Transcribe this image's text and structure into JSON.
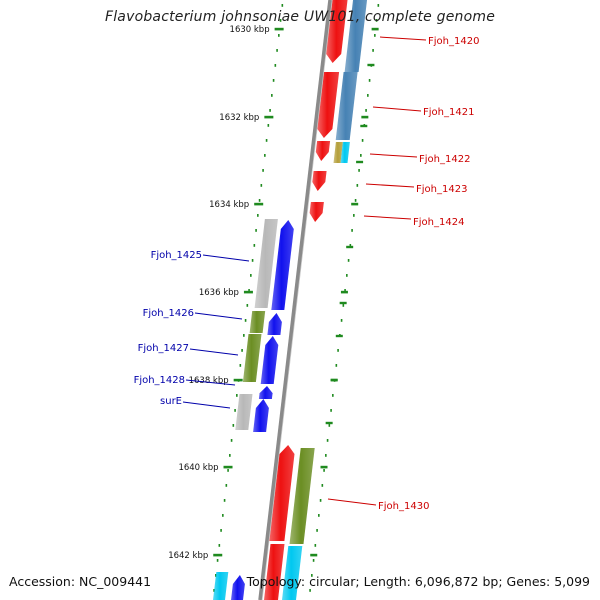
{
  "title": "Flavobacterium johnsoniae UW101, complete genome",
  "accession": "Accession: NC_009441",
  "summary": "Topology: circular; Length: 6,096,872 bp; Genes: 5,099",
  "colors": {
    "red_gene": "#ee1111",
    "blue_gene": "#1111ee",
    "olive_gene": "#6b8e23",
    "steelblue_gene": "#4682b4",
    "gray_gene": "#b8b8b8",
    "cyan_gene": "#00c8f0",
    "tan_gene": "#b59f3b",
    "backbone": "#8a8a8a",
    "tick": "#1f8a1f",
    "label_red": "#cc0000",
    "label_blue": "#0000aa"
  },
  "scale": {
    "ticks": [
      {
        "label": "1630 kbp"
      },
      {
        "label": "1632 kbp"
      },
      {
        "label": "1634 kbp"
      },
      {
        "label": "1636 kbp"
      },
      {
        "label": "1638 kbp"
      },
      {
        "label": "1640 kbp"
      },
      {
        "label": "1642 kbp"
      }
    ]
  },
  "genes": {
    "forward": [
      {
        "name": "Fjoh_1420"
      },
      {
        "name": "Fjoh_1421"
      },
      {
        "name": "Fjoh_1422"
      },
      {
        "name": "Fjoh_1423"
      },
      {
        "name": "Fjoh_1424"
      },
      {
        "name": "Fjoh_1430"
      }
    ],
    "reverse": [
      {
        "name": "Fjoh_1425"
      },
      {
        "name": "Fjoh_1426"
      },
      {
        "name": "Fjoh_1427"
      },
      {
        "name": "Fjoh_1428"
      },
      {
        "name": "surE"
      }
    ]
  }
}
